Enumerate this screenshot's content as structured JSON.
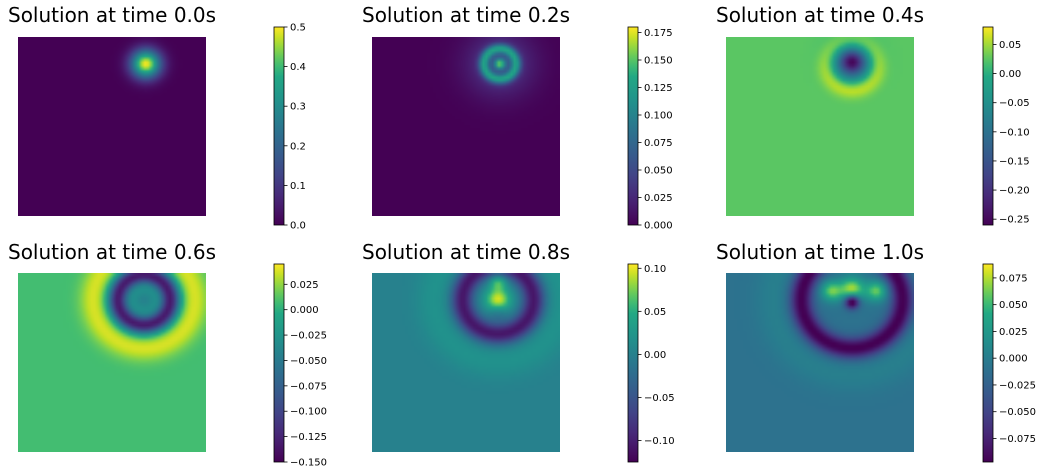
{
  "chart_data": [
    {
      "type": "heatmap",
      "title": "Solution at time 0.0s",
      "colormap": "viridis",
      "x_range": [
        0,
        1
      ],
      "y_range": [
        0,
        1
      ],
      "color_range": [
        0,
        0.5
      ],
      "colorbar_ticks": [
        "0.0",
        "0.1",
        "0.2",
        "0.3",
        "0.4",
        "0.5"
      ],
      "colorbar_tick_values": [
        0,
        0.1,
        0.2,
        0.3,
        0.4,
        0.5
      ],
      "background_value": 0,
      "features": [
        {
          "shape": "bump",
          "cx": 0.68,
          "cy": 0.85,
          "radius": 0.07,
          "value": 0.5
        }
      ]
    },
    {
      "type": "heatmap",
      "title": "Solution at time 0.2s",
      "colormap": "viridis",
      "x_range": [
        0,
        1
      ],
      "y_range": [
        0,
        1
      ],
      "color_range": [
        0,
        0.18
      ],
      "colorbar_ticks": [
        "0.000",
        "0.025",
        "0.050",
        "0.075",
        "0.100",
        "0.125",
        "0.150",
        "0.175"
      ],
      "colorbar_tick_values": [
        0,
        0.025,
        0.05,
        0.075,
        0.1,
        0.125,
        0.15,
        0.175
      ],
      "background_value": 0,
      "features": [
        {
          "shape": "bump",
          "cx": 0.68,
          "cy": 0.85,
          "radius": 0.16,
          "value": 0.04
        },
        {
          "shape": "ring",
          "cx": 0.68,
          "cy": 0.85,
          "r0": 0.085,
          "width": 0.032,
          "value": 0.1
        },
        {
          "shape": "bump",
          "cx": 0.68,
          "cy": 0.85,
          "radius": 0.028,
          "value": 0.12
        }
      ]
    },
    {
      "type": "heatmap",
      "title": "Solution at time 0.4s",
      "colormap": "viridis",
      "x_range": [
        0,
        1
      ],
      "y_range": [
        0,
        1
      ],
      "color_range": [
        -0.26,
        0.08
      ],
      "colorbar_ticks": [
        "−0.25",
        "−0.20",
        "−0.15",
        "−0.10",
        "−0.05",
        "0.00",
        "0.05"
      ],
      "colorbar_tick_values": [
        -0.25,
        -0.2,
        -0.15,
        -0.1,
        -0.05,
        0,
        0.05
      ],
      "background_value": 0.025,
      "features": [
        {
          "shape": "ring",
          "cx": 0.67,
          "cy": 0.84,
          "r0": 0.13,
          "width": 0.06,
          "value": 0.055
        },
        {
          "shape": "bump",
          "cx": 0.67,
          "cy": 0.86,
          "radius": 0.095,
          "value": -0.2
        },
        {
          "shape": "bump",
          "cx": 0.67,
          "cy": 0.86,
          "radius": 0.045,
          "value": -0.08
        }
      ]
    },
    {
      "type": "heatmap",
      "title": "Solution at time 0.6s",
      "colormap": "viridis",
      "x_range": [
        0,
        1
      ],
      "y_range": [
        0,
        1
      ],
      "color_range": [
        -0.15,
        0.045
      ],
      "colorbar_ticks": [
        "−0.150",
        "−0.125",
        "−0.100",
        "−0.075",
        "−0.050",
        "−0.025",
        "0.000",
        "0.025"
      ],
      "colorbar_tick_values": [
        -0.15,
        -0.125,
        -0.1,
        -0.075,
        -0.05,
        -0.025,
        0,
        0.025
      ],
      "background_value": 0.008,
      "features": [
        {
          "shape": "ring",
          "cx": 0.67,
          "cy": 0.85,
          "r0": 0.27,
          "width": 0.085,
          "value": 0.03
        },
        {
          "shape": "ring",
          "cx": 0.67,
          "cy": 0.85,
          "r0": 0.14,
          "width": 0.06,
          "value": -0.14
        },
        {
          "shape": "bump",
          "cx": 0.67,
          "cy": 0.85,
          "radius": 0.07,
          "value": -0.05
        }
      ]
    },
    {
      "type": "heatmap",
      "title": "Solution at time 0.8s",
      "colormap": "viridis",
      "x_range": [
        0,
        1
      ],
      "y_range": [
        0,
        1
      ],
      "color_range": [
        -0.125,
        0.105
      ],
      "colorbar_ticks": [
        "−0.10",
        "−0.05",
        "0.00",
        "0.05",
        "0.10"
      ],
      "colorbar_tick_values": [
        -0.1,
        -0.05,
        0,
        0.05,
        0.1
      ],
      "background_value": 0,
      "features": [
        {
          "shape": "ring",
          "cx": 0.67,
          "cy": 0.85,
          "r0": 0.34,
          "width": 0.12,
          "value": 0.02
        },
        {
          "shape": "ring",
          "cx": 0.67,
          "cy": 0.85,
          "r0": 0.19,
          "width": 0.07,
          "value": -0.11
        },
        {
          "shape": "bump",
          "cx": 0.67,
          "cy": 0.85,
          "radius": 0.06,
          "value": 0.1
        },
        {
          "shape": "bump",
          "cx": 0.67,
          "cy": 0.95,
          "radius": 0.04,
          "value": 0.06
        },
        {
          "shape": "bump",
          "cx": 0.67,
          "cy": 0.78,
          "radius": 0.045,
          "value": -0.03
        }
      ]
    },
    {
      "type": "heatmap",
      "title": "Solution at time 1.0s",
      "colormap": "viridis",
      "x_range": [
        0,
        1
      ],
      "y_range": [
        0,
        1
      ],
      "color_range": [
        -0.097,
        0.088
      ],
      "colorbar_ticks": [
        "−0.075",
        "−0.050",
        "−0.025",
        "0.000",
        "0.025",
        "0.050",
        "0.075"
      ],
      "colorbar_tick_values": [
        -0.075,
        -0.05,
        -0.025,
        0,
        0.025,
        0.05,
        0.075
      ],
      "background_value": -0.01,
      "features": [
        {
          "shape": "ring",
          "cx": 0.67,
          "cy": 0.85,
          "r0": 0.42,
          "width": 0.12,
          "value": 0.012
        },
        {
          "shape": "ring",
          "cx": 0.67,
          "cy": 0.85,
          "r0": 0.27,
          "width": 0.07,
          "value": -0.09
        },
        {
          "shape": "bump",
          "cx": 0.67,
          "cy": 0.91,
          "radius": 0.06,
          "value": 0.085
        },
        {
          "shape": "bump",
          "cx": 0.56,
          "cy": 0.9,
          "radius": 0.05,
          "value": 0.07
        },
        {
          "shape": "bump",
          "cx": 0.8,
          "cy": 0.9,
          "radius": 0.05,
          "value": 0.07
        },
        {
          "shape": "bump",
          "cx": 0.67,
          "cy": 0.84,
          "radius": 0.035,
          "value": -0.12
        }
      ]
    }
  ]
}
